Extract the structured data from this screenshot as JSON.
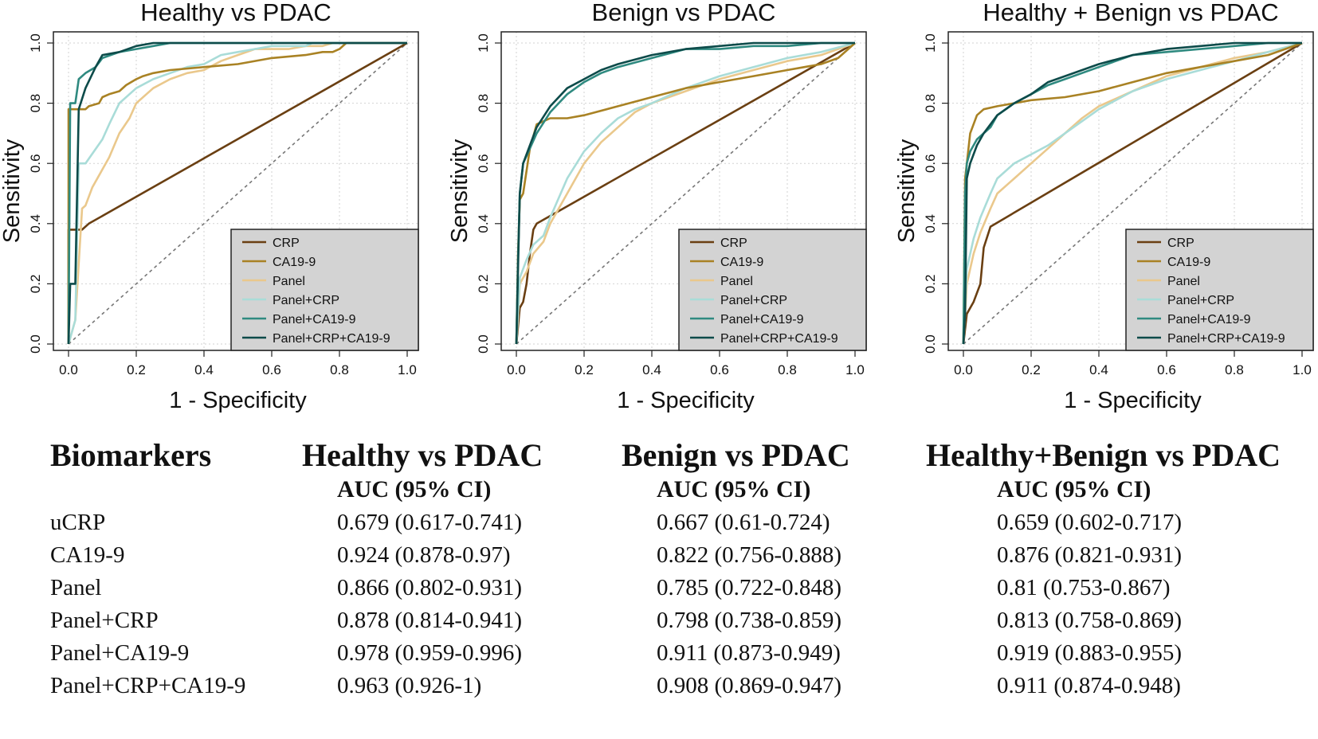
{
  "chart_data": [
    {
      "type": "line",
      "title": "Healthy vs PDAC",
      "xlabel": "1 - Specificity",
      "ylabel": "Sensitivity",
      "xlim": [
        0,
        1
      ],
      "ylim": [
        0,
        1
      ],
      "xticks": [
        "0.0",
        "0.2",
        "0.4",
        "0.6",
        "0.8",
        "1.0"
      ],
      "yticks": [
        "0.0",
        "0.2",
        "0.4",
        "0.6",
        "0.8",
        "1.0"
      ],
      "grid": true,
      "legend_position": "bottom-right",
      "diagonal": true,
      "series": [
        {
          "name": "CRP",
          "color": "#6a3f12",
          "x": [
            0,
            0,
            0.04,
            0.06,
            1
          ],
          "y": [
            0,
            0.38,
            0.38,
            0.4,
            1
          ]
        },
        {
          "name": "CA19-9",
          "color": "#a98224",
          "x": [
            0,
            0,
            0.05,
            0.06,
            0.09,
            0.1,
            0.12,
            0.15,
            0.17,
            0.2,
            0.22,
            0.25,
            0.3,
            0.4,
            0.5,
            0.6,
            0.7,
            0.75,
            0.78,
            0.8,
            0.82,
            1
          ],
          "y": [
            0,
            0.78,
            0.78,
            0.79,
            0.8,
            0.82,
            0.83,
            0.84,
            0.86,
            0.88,
            0.89,
            0.9,
            0.91,
            0.92,
            0.93,
            0.95,
            0.96,
            0.97,
            0.97,
            0.98,
            1,
            1
          ]
        },
        {
          "name": "Panel",
          "color": "#eac88c",
          "x": [
            0,
            0.02,
            0.04,
            0.05,
            0.07,
            0.1,
            0.12,
            0.15,
            0.18,
            0.2,
            0.25,
            0.3,
            0.35,
            0.4,
            0.45,
            0.5,
            0.55,
            0.6,
            0.65,
            0.7,
            0.75,
            0.78,
            0.8,
            1
          ],
          "y": [
            0,
            0.08,
            0.45,
            0.46,
            0.52,
            0.58,
            0.62,
            0.7,
            0.75,
            0.8,
            0.85,
            0.88,
            0.9,
            0.91,
            0.94,
            0.96,
            0.98,
            0.98,
            0.98,
            0.99,
            0.99,
            1,
            1,
            1
          ]
        },
        {
          "name": "Panel+CRP",
          "color": "#a9dcd8",
          "x": [
            0,
            0.02,
            0.03,
            0.05,
            0.1,
            0.12,
            0.15,
            0.2,
            0.25,
            0.3,
            0.35,
            0.4,
            0.45,
            0.5,
            0.55,
            0.6,
            0.65,
            0.7,
            0.72,
            1
          ],
          "y": [
            0,
            0.08,
            0.6,
            0.6,
            0.68,
            0.73,
            0.8,
            0.85,
            0.88,
            0.9,
            0.92,
            0.93,
            0.96,
            0.97,
            0.98,
            0.99,
            0.99,
            0.99,
            1,
            1
          ]
        },
        {
          "name": "Panel+CA19-9",
          "color": "#2f8a80",
          "x": [
            0,
            0.005,
            0.02,
            0.03,
            0.05,
            0.08,
            0.1,
            0.15,
            0.2,
            0.25,
            0.3,
            1
          ],
          "y": [
            0,
            0.8,
            0.8,
            0.88,
            0.9,
            0.92,
            0.95,
            0.97,
            0.98,
            0.99,
            1,
            1
          ]
        },
        {
          "name": "Panel+CRP+CA19-9",
          "color": "#0d4b4a",
          "x": [
            0,
            0.005,
            0.02,
            0.03,
            0.05,
            0.08,
            0.1,
            0.15,
            0.2,
            0.25,
            0.3,
            1
          ],
          "y": [
            0,
            0.2,
            0.2,
            0.78,
            0.85,
            0.92,
            0.96,
            0.97,
            0.99,
            1,
            1,
            1
          ]
        }
      ]
    },
    {
      "type": "line",
      "title": "Benign vs PDAC",
      "xlabel": "1 - Specificity",
      "ylabel": "Sensitivity",
      "xlim": [
        0,
        1
      ],
      "ylim": [
        0,
        1
      ],
      "xticks": [
        "0.0",
        "0.2",
        "0.4",
        "0.6",
        "0.8",
        "1.0"
      ],
      "yticks": [
        "0.0",
        "0.2",
        "0.4",
        "0.6",
        "0.8",
        "1.0"
      ],
      "grid": true,
      "legend_position": "bottom-right",
      "diagonal": true,
      "series": [
        {
          "name": "CRP",
          "color": "#6a3f12",
          "x": [
            0,
            0.01,
            0.02,
            0.03,
            0.04,
            0.05,
            0.06,
            1
          ],
          "y": [
            0,
            0.12,
            0.14,
            0.2,
            0.3,
            0.38,
            0.4,
            1
          ]
        },
        {
          "name": "CA19-9",
          "color": "#a98224",
          "x": [
            0,
            0.005,
            0.01,
            0.02,
            0.04,
            0.06,
            0.08,
            0.1,
            0.15,
            0.2,
            0.3,
            0.4,
            0.5,
            0.6,
            0.7,
            0.8,
            0.9,
            0.95,
            0.98,
            1
          ],
          "y": [
            0,
            0.3,
            0.48,
            0.5,
            0.65,
            0.73,
            0.74,
            0.75,
            0.75,
            0.76,
            0.79,
            0.82,
            0.85,
            0.87,
            0.89,
            0.91,
            0.93,
            0.95,
            0.98,
            1
          ]
        },
        {
          "name": "Panel",
          "color": "#eac88c",
          "x": [
            0,
            0.01,
            0.03,
            0.05,
            0.08,
            0.1,
            0.15,
            0.2,
            0.25,
            0.3,
            0.35,
            0.4,
            0.5,
            0.6,
            0.7,
            0.8,
            0.9,
            0.95,
            1
          ],
          "y": [
            0,
            0.2,
            0.24,
            0.3,
            0.34,
            0.4,
            0.5,
            0.6,
            0.67,
            0.72,
            0.77,
            0.8,
            0.84,
            0.88,
            0.91,
            0.94,
            0.96,
            0.98,
            1
          ]
        },
        {
          "name": "Panel+CRP",
          "color": "#a9dcd8",
          "x": [
            0,
            0.01,
            0.03,
            0.05,
            0.08,
            0.1,
            0.15,
            0.2,
            0.25,
            0.3,
            0.35,
            0.4,
            0.5,
            0.6,
            0.7,
            0.8,
            0.9,
            1
          ],
          "y": [
            0,
            0.22,
            0.28,
            0.33,
            0.36,
            0.42,
            0.55,
            0.64,
            0.7,
            0.75,
            0.78,
            0.8,
            0.85,
            0.89,
            0.92,
            0.95,
            0.97,
            1
          ]
        },
        {
          "name": "Panel+CA19-9",
          "color": "#2f8a80",
          "x": [
            0,
            0.005,
            0.01,
            0.02,
            0.04,
            0.06,
            0.1,
            0.15,
            0.2,
            0.25,
            0.3,
            0.4,
            0.5,
            0.6,
            0.7,
            0.8,
            0.9,
            1
          ],
          "y": [
            0,
            0.28,
            0.5,
            0.6,
            0.65,
            0.7,
            0.77,
            0.83,
            0.87,
            0.9,
            0.92,
            0.95,
            0.98,
            0.98,
            0.99,
            0.99,
            1,
            1
          ]
        },
        {
          "name": "Panel+CRP+CA19-9",
          "color": "#0d4b4a",
          "x": [
            0,
            0.005,
            0.01,
            0.02,
            0.04,
            0.06,
            0.1,
            0.15,
            0.2,
            0.25,
            0.3,
            0.4,
            0.5,
            0.6,
            0.7,
            0.8,
            1
          ],
          "y": [
            0,
            0.25,
            0.5,
            0.6,
            0.66,
            0.72,
            0.79,
            0.85,
            0.88,
            0.91,
            0.93,
            0.96,
            0.98,
            0.99,
            1,
            1,
            1
          ]
        }
      ]
    },
    {
      "type": "line",
      "title": "Healthy + Benign vs PDAC",
      "xlabel": "1 - Specificity",
      "ylabel": "Sensitivity",
      "xlim": [
        0,
        1
      ],
      "ylim": [
        0,
        1
      ],
      "xticks": [
        "0.0",
        "0.2",
        "0.4",
        "0.6",
        "0.8",
        "1.0"
      ],
      "yticks": [
        "0.0",
        "0.2",
        "0.4",
        "0.6",
        "0.8",
        "1.0"
      ],
      "grid": true,
      "legend_position": "bottom-right",
      "diagonal": true,
      "series": [
        {
          "name": "CRP",
          "color": "#6a3f12",
          "x": [
            0,
            0.01,
            0.03,
            0.05,
            0.06,
            0.08,
            1
          ],
          "y": [
            0,
            0.1,
            0.14,
            0.2,
            0.32,
            0.39,
            1
          ]
        },
        {
          "name": "CA19-9",
          "color": "#a98224",
          "x": [
            0,
            0.005,
            0.01,
            0.02,
            0.04,
            0.06,
            0.1,
            0.15,
            0.2,
            0.3,
            0.4,
            0.5,
            0.6,
            0.7,
            0.8,
            0.9,
            0.95,
            1
          ],
          "y": [
            0,
            0.55,
            0.6,
            0.7,
            0.76,
            0.78,
            0.79,
            0.8,
            0.81,
            0.82,
            0.84,
            0.87,
            0.9,
            0.92,
            0.94,
            0.96,
            0.98,
            1
          ]
        },
        {
          "name": "Panel",
          "color": "#eac88c",
          "x": [
            0,
            0.01,
            0.03,
            0.05,
            0.08,
            0.1,
            0.15,
            0.2,
            0.25,
            0.3,
            0.35,
            0.4,
            0.5,
            0.6,
            0.7,
            0.8,
            0.9,
            1
          ],
          "y": [
            0,
            0.2,
            0.3,
            0.37,
            0.45,
            0.5,
            0.55,
            0.6,
            0.65,
            0.7,
            0.75,
            0.79,
            0.84,
            0.89,
            0.92,
            0.95,
            0.97,
            1
          ]
        },
        {
          "name": "Panel+CRP",
          "color": "#a9dcd8",
          "x": [
            0,
            0.01,
            0.03,
            0.05,
            0.08,
            0.1,
            0.15,
            0.2,
            0.25,
            0.3,
            0.35,
            0.4,
            0.5,
            0.6,
            0.7,
            0.8,
            0.9,
            1
          ],
          "y": [
            0,
            0.25,
            0.35,
            0.42,
            0.5,
            0.55,
            0.6,
            0.63,
            0.66,
            0.7,
            0.74,
            0.78,
            0.84,
            0.88,
            0.91,
            0.94,
            0.97,
            1
          ]
        },
        {
          "name": "Panel+CA19-9",
          "color": "#2f8a80",
          "x": [
            0,
            0.005,
            0.01,
            0.02,
            0.04,
            0.06,
            0.08,
            0.1,
            0.15,
            0.2,
            0.25,
            0.3,
            0.4,
            0.5,
            0.6,
            0.7,
            0.8,
            0.9,
            1
          ],
          "y": [
            0,
            0.5,
            0.6,
            0.64,
            0.68,
            0.7,
            0.72,
            0.76,
            0.8,
            0.83,
            0.86,
            0.88,
            0.92,
            0.96,
            0.97,
            0.98,
            0.99,
            1,
            1
          ]
        },
        {
          "name": "Panel+CRP+CA19-9",
          "color": "#0d4b4a",
          "x": [
            0,
            0.005,
            0.01,
            0.02,
            0.04,
            0.06,
            0.1,
            0.15,
            0.2,
            0.25,
            0.3,
            0.4,
            0.5,
            0.6,
            0.7,
            0.8,
            0.9,
            1
          ],
          "y": [
            0,
            0.1,
            0.55,
            0.6,
            0.66,
            0.7,
            0.76,
            0.8,
            0.83,
            0.87,
            0.89,
            0.93,
            0.96,
            0.98,
            0.99,
            1,
            1,
            1
          ]
        }
      ]
    }
  ],
  "table": {
    "headers": [
      "Biomarkers",
      "Healthy vs PDAC",
      "Benign vs PDAC",
      "Healthy+Benign vs PDAC"
    ],
    "subheaders": [
      "AUC (95% CI)",
      "AUC (95% CI)",
      "AUC (95% CI)"
    ],
    "rows": [
      [
        "uCRP",
        "0.679 (0.617-0.741)",
        "0.667 (0.61-0.724)",
        "0.659 (0.602-0.717)"
      ],
      [
        "CA19-9",
        "0.924 (0.878-0.97)",
        "0.822 (0.756-0.888)",
        "0.876 (0.821-0.931)"
      ],
      [
        "Panel",
        "0.866 (0.802-0.931)",
        "0.785 (0.722-0.848)",
        "0.81 (0.753-0.867)"
      ],
      [
        "Panel+CRP",
        "0.878 (0.814-0.941)",
        "0.798 (0.738-0.859)",
        "0.813 (0.758-0.869)"
      ],
      [
        "Panel+CA19-9",
        "0.978 (0.959-0.996)",
        "0.911 (0.873-0.949)",
        "0.919 (0.883-0.955)"
      ],
      [
        "Panel+CRP+CA19-9",
        "0.963 (0.926-1)",
        "0.908 (0.869-0.947)",
        "0.911 (0.874-0.948)"
      ]
    ]
  }
}
